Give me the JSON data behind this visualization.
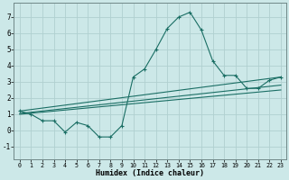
{
  "xlabel": "Humidex (Indice chaleur)",
  "background_color": "#cce8e8",
  "line_color": "#1a6e64",
  "grid_color": "#b0d0d0",
  "xlim": [
    -0.5,
    23.5
  ],
  "ylim": [
    -1.8,
    7.9
  ],
  "yticks": [
    -1,
    0,
    1,
    2,
    3,
    4,
    5,
    6,
    7
  ],
  "xticks": [
    0,
    1,
    2,
    3,
    4,
    5,
    6,
    7,
    8,
    9,
    10,
    11,
    12,
    13,
    14,
    15,
    16,
    17,
    18,
    19,
    20,
    21,
    22,
    23
  ],
  "main_line_x": [
    0,
    1,
    2,
    3,
    4,
    5,
    6,
    7,
    8,
    9,
    10,
    11,
    12,
    13,
    14,
    15,
    16,
    17,
    18,
    19,
    20,
    21,
    22,
    23
  ],
  "main_line_y": [
    1.2,
    1.0,
    0.6,
    0.6,
    -0.1,
    0.5,
    0.3,
    -0.4,
    -0.4,
    0.3,
    3.3,
    3.8,
    5.0,
    6.3,
    7.0,
    7.3,
    6.2,
    4.3,
    3.4,
    3.4,
    2.6,
    2.6,
    3.1,
    3.3
  ],
  "line2_x": [
    0,
    23
  ],
  "line2_y": [
    1.2,
    3.3
  ],
  "line3_x": [
    0,
    23
  ],
  "line3_y": [
    1.05,
    2.8
  ],
  "line4_x": [
    0,
    23
  ],
  "line4_y": [
    1.0,
    2.5
  ]
}
